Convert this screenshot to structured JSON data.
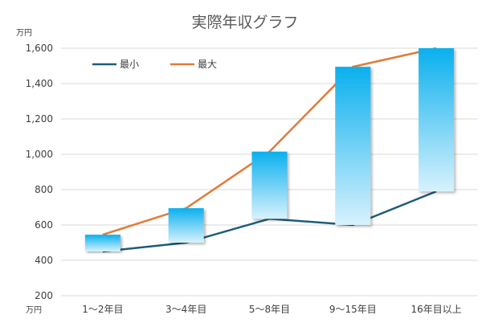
{
  "chart_data": {
    "type": "line",
    "title": "実際年収グラフ",
    "y_unit_label": "万円",
    "x_unit_label": "万円",
    "categories": [
      "1〜2年目",
      "3〜4年目",
      "5〜8年目",
      "9〜15年目",
      "16年目以上"
    ],
    "series": [
      {
        "name": "最小",
        "values": [
          450,
          500,
          635,
          600,
          790
        ],
        "color": "#1f5c7a"
      },
      {
        "name": "最大",
        "values": [
          545,
          695,
          1015,
          1495,
          1600
        ],
        "color": "#e07b39"
      }
    ],
    "range_bars": {
      "color_top": "#0ab0ee",
      "color_bottom": "#d8f2fd"
    },
    "ylim": [
      200,
      1600
    ],
    "yticks": [
      200,
      400,
      600,
      800,
      1000,
      1200,
      1400,
      1600
    ],
    "ytick_labels": [
      "200",
      "400",
      "600",
      "800",
      "1,000",
      "1,200",
      "1,400",
      "1,600"
    ],
    "grid": true,
    "legend_position": "top-left"
  }
}
